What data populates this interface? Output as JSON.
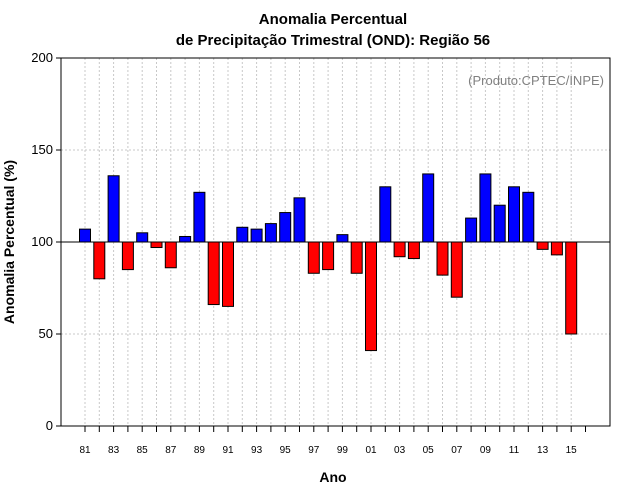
{
  "chart_data": {
    "type": "bar",
    "title_line1": "Anomalia Percentual",
    "title_line2": "de Precipitação Trimestral (OND): Região 56",
    "xlabel": "Ano",
    "ylabel": "Anomalia Percentual (%)",
    "credit": "(Produto:CPTEC/INPE)",
    "ylim": [
      0,
      200
    ],
    "yticks": [
      "0",
      "50",
      "100",
      "150",
      "200"
    ],
    "baseline": 100,
    "grid": true,
    "colors": {
      "above": "#0000ff",
      "below": "#ff0000"
    },
    "categories": [
      "81",
      "82",
      "83",
      "84",
      "85",
      "86",
      "87",
      "88",
      "89",
      "90",
      "91",
      "92",
      "93",
      "94",
      "95",
      "96",
      "97",
      "98",
      "99",
      "00",
      "01",
      "02",
      "03",
      "04",
      "05",
      "06",
      "07",
      "08",
      "09",
      "10",
      "11",
      "12",
      "13",
      "14",
      "15"
    ],
    "xtick_labels": [
      "81",
      "83",
      "85",
      "87",
      "89",
      "91",
      "93",
      "95",
      "97",
      "99",
      "01",
      "03",
      "05",
      "07",
      "09",
      "11",
      "13",
      "15"
    ],
    "values": [
      107,
      80,
      136,
      85,
      105,
      97,
      86,
      103,
      127,
      66,
      65,
      108,
      107,
      110,
      116,
      124,
      83,
      85,
      104,
      83,
      41,
      130,
      92,
      91,
      137,
      82,
      70,
      113,
      137,
      120,
      130,
      127,
      96,
      93,
      50
    ]
  }
}
